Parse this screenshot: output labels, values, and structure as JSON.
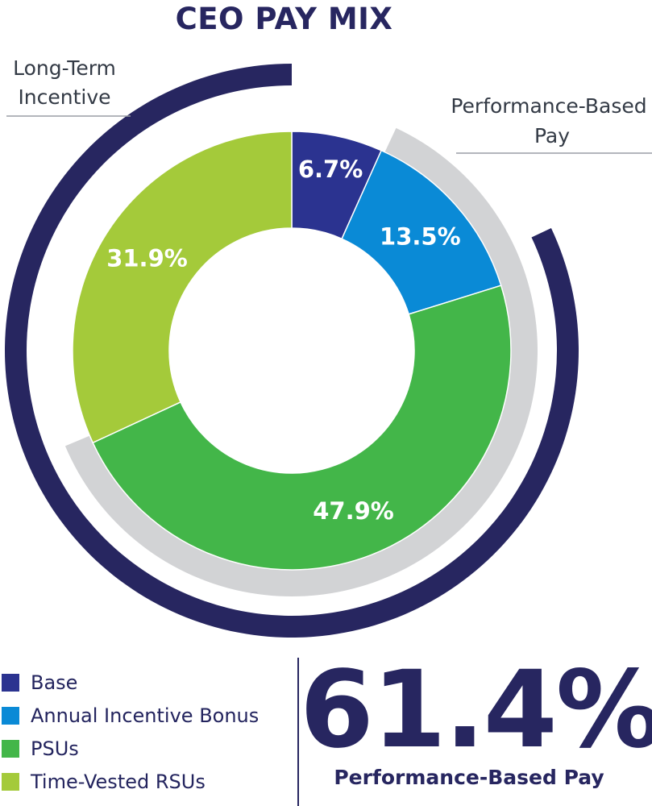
{
  "title": "CEO PAY MIX",
  "colors": {
    "navy": "#272660",
    "base": "#2b3390",
    "annual_incentive_bonus": "#0a8ad6",
    "psus": "#43b649",
    "time_vested_rsus": "#a4ca3a",
    "performance_ring": "#d2d3d5"
  },
  "callouts": {
    "long_term": [
      "Long-Term",
      "Incentive"
    ],
    "performance": [
      "Performance-Based",
      "Pay"
    ]
  },
  "chart_data": {
    "type": "pie",
    "subtype": "donut",
    "title": "CEO PAY MIX",
    "categories": [
      "Base",
      "Annual Incentive Bonus",
      "PSUs",
      "Time-Vested RSUs"
    ],
    "values": [
      6.7,
      13.5,
      47.9,
      31.9
    ],
    "labels": [
      "6.7%",
      "13.5%",
      "47.9%",
      "31.9%"
    ],
    "units": "%",
    "outer_rings": [
      {
        "name": "Long-Term Incentive",
        "components": [
          "PSUs",
          "Time-Vested RSUs"
        ]
      },
      {
        "name": "Performance-Based Pay",
        "components": [
          "Annual Incentive Bonus",
          "PSUs"
        ]
      }
    ]
  },
  "legend": {
    "items": [
      {
        "label": "Base",
        "color": "#2b3390"
      },
      {
        "label": "Annual Incentive Bonus",
        "color": "#0a8ad6"
      },
      {
        "label": "PSUs",
        "color": "#43b649"
      },
      {
        "label": "Time-Vested RSUs",
        "color": "#a4ca3a"
      }
    ]
  },
  "summary": {
    "value": "61.4%",
    "caption": "Performance-Based Pay"
  }
}
